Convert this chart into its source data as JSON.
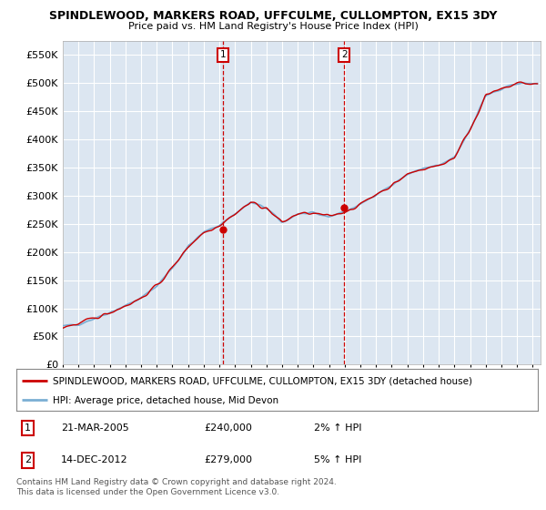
{
  "title": "SPINDLEWOOD, MARKERS ROAD, UFFCULME, CULLOMPTON, EX15 3DY",
  "subtitle": "Price paid vs. HM Land Registry's House Price Index (HPI)",
  "ylim": [
    0,
    575000
  ],
  "yticks": [
    0,
    50000,
    100000,
    150000,
    200000,
    250000,
    300000,
    350000,
    400000,
    450000,
    500000,
    550000
  ],
  "ytick_labels": [
    "£0",
    "£50K",
    "£100K",
    "£150K",
    "£200K",
    "£250K",
    "£300K",
    "£350K",
    "£400K",
    "£450K",
    "£500K",
    "£550K"
  ],
  "legend_line1": "SPINDLEWOOD, MARKERS ROAD, UFFCULME, CULLOMPTON, EX15 3DY (detached house)",
  "legend_line2": "HPI: Average price, detached house, Mid Devon",
  "annotation1_label": "1",
  "annotation1_date": "21-MAR-2005",
  "annotation1_price": "£240,000",
  "annotation1_hpi": "2% ↑ HPI",
  "annotation1_year": 2005.22,
  "annotation1_value": 240000,
  "annotation2_label": "2",
  "annotation2_date": "14-DEC-2012",
  "annotation2_price": "£279,000",
  "annotation2_hpi": "5% ↑ HPI",
  "annotation2_year": 2012.96,
  "annotation2_value": 279000,
  "footer": "Contains HM Land Registry data © Crown copyright and database right 2024.\nThis data is licensed under the Open Government Licence v3.0.",
  "bg_color": "#ffffff",
  "plot_bg_color": "#dce6f1",
  "grid_color": "#ffffff",
  "hpi_line_color": "#7bafd4",
  "price_line_color": "#cc0000",
  "annotation_box_color": "#cc0000",
  "hpi_fill_color": "#b8d0e8",
  "xlim_start": 1995,
  "xlim_end": 2025.5
}
